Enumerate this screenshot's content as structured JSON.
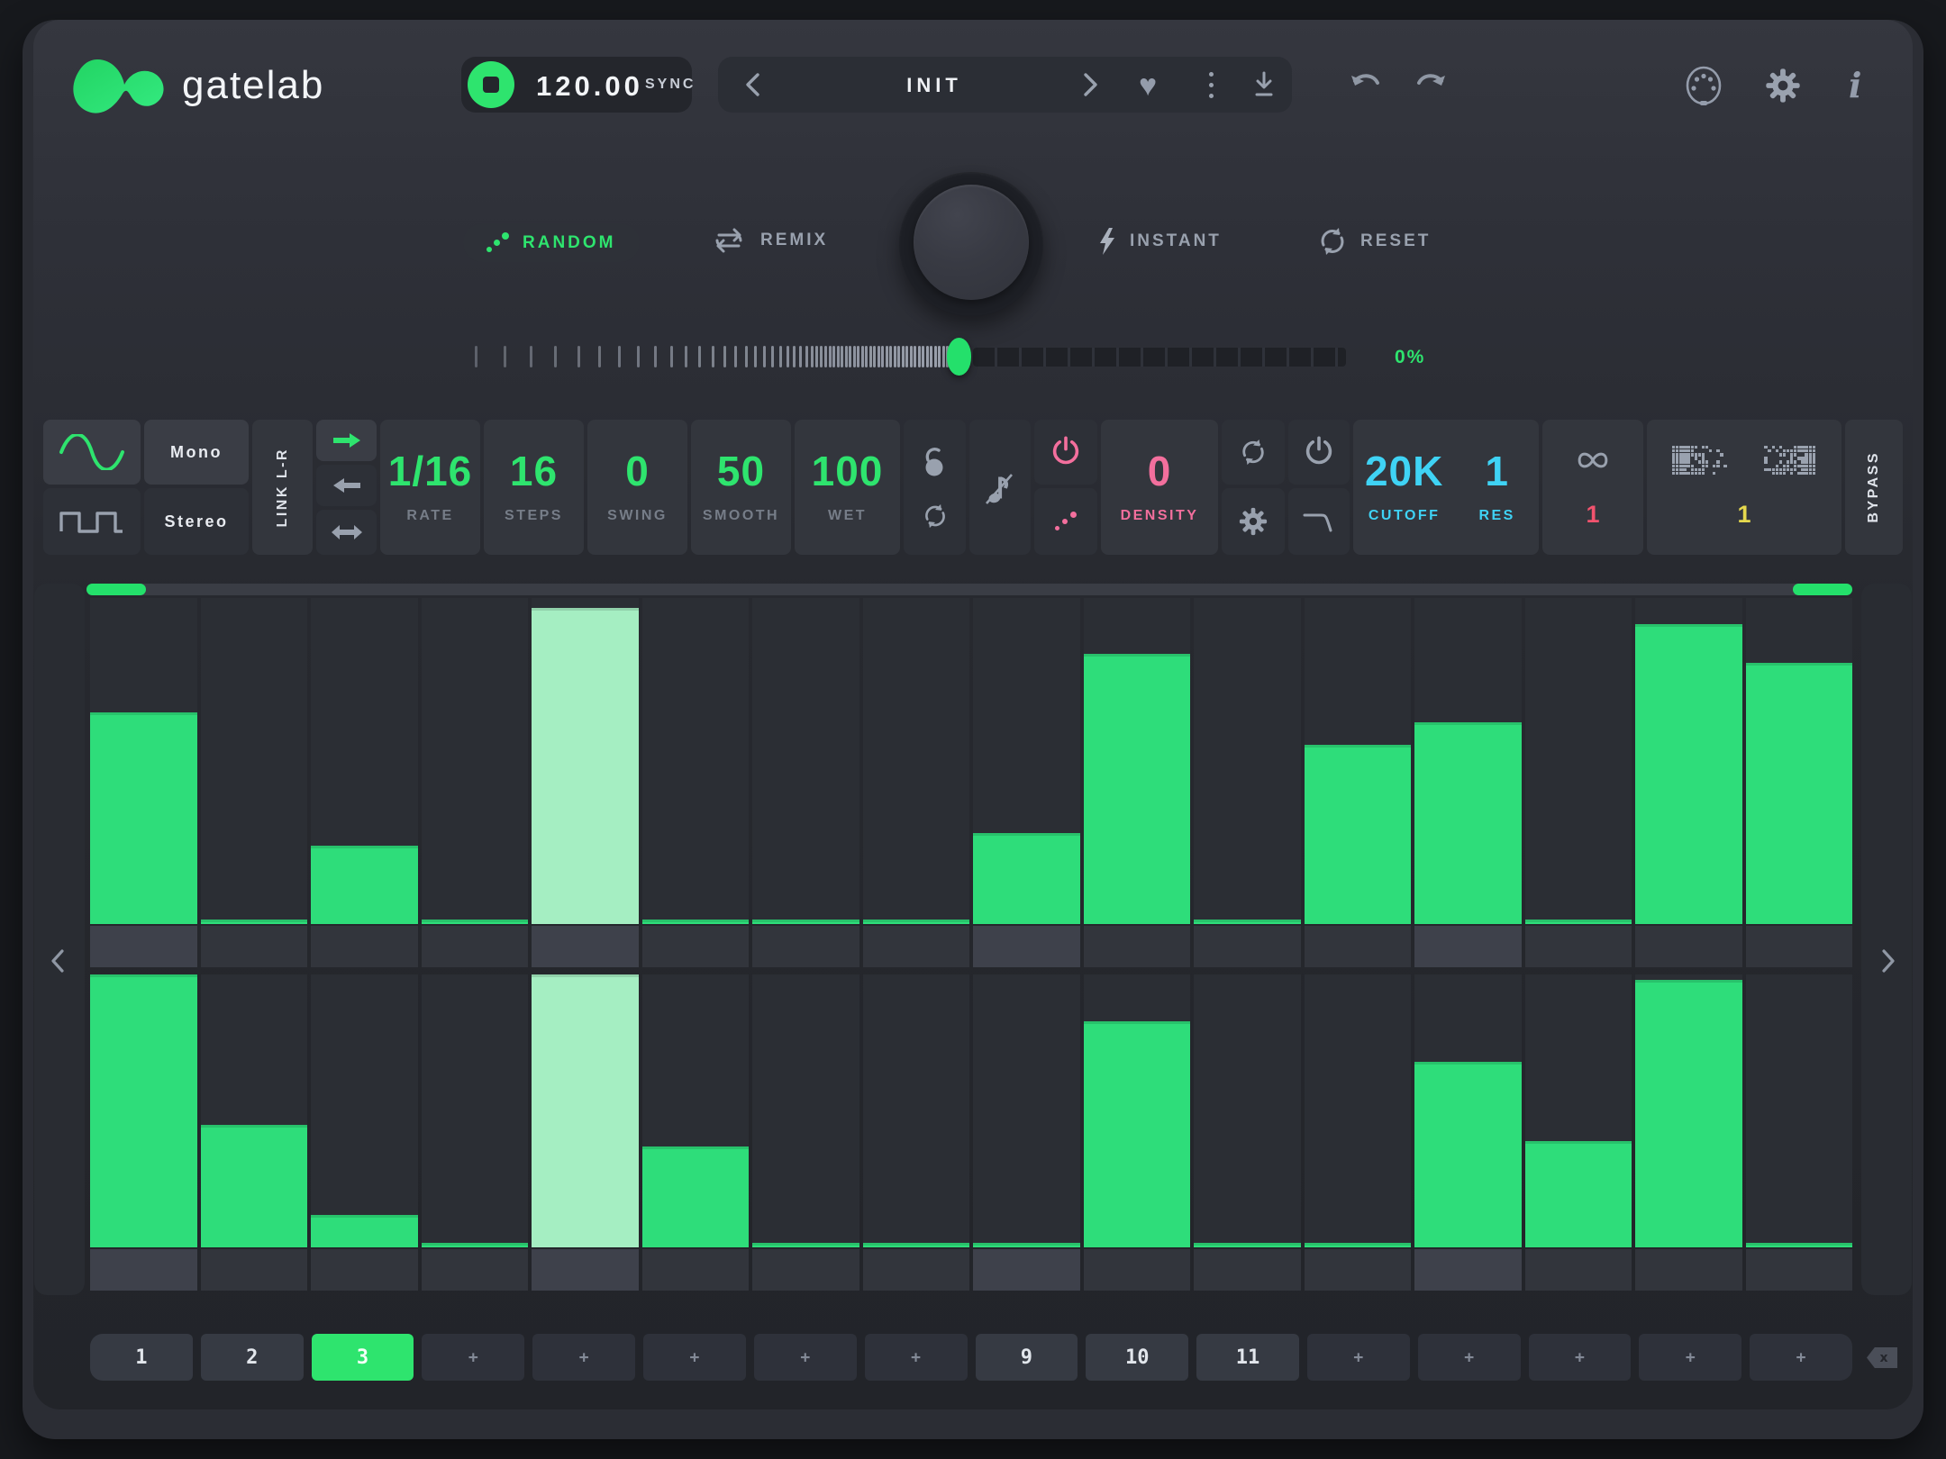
{
  "colors": {
    "accent_green": "#2ee46e",
    "bar_green": "#2edd7a",
    "bar_active_green": "#a5eec2",
    "pink": "#f36f9d",
    "red": "#f2536e",
    "cyan": "#3fd3f5",
    "yellow": "#e5d84e",
    "panel_dark": "#26282e"
  },
  "header": {
    "logo_text": "gatelab",
    "tempo_value": "120.00",
    "sync_label": "SYNC",
    "preset_name": "INIT",
    "heart_glyph": "♥",
    "info_glyph": "i"
  },
  "transport": {
    "random_label": "RANDOM",
    "remix_label": "REMIX",
    "instant_label": "INSTANT",
    "reset_label": "RESET",
    "variation_percent": "0%"
  },
  "controls": {
    "mono_label": "Mono",
    "stereo_label": "Stereo",
    "link_label": "LINK L-R",
    "rate": {
      "value": "1/16",
      "label": "RATE"
    },
    "steps": {
      "value": "16",
      "label": "STEPS"
    },
    "swing": {
      "value": "0",
      "label": "SWING"
    },
    "smooth": {
      "value": "50",
      "label": "SMOOTH"
    },
    "wet": {
      "value": "100",
      "label": "WET"
    },
    "density": {
      "value": "0",
      "label": "DENSITY"
    },
    "cutoff": {
      "value": "20K",
      "label": "CUTOFF"
    },
    "res": {
      "value": "1",
      "label": "RES"
    },
    "loop_count": "1",
    "randomizer_count": "1",
    "bypass_label": "BYPASS"
  },
  "chart_data": [
    {
      "type": "bar",
      "title": "Gate step sequencer - lane A (top)",
      "x": [
        1,
        2,
        3,
        4,
        5,
        6,
        7,
        8,
        9,
        10,
        11,
        12,
        13,
        14,
        15,
        16
      ],
      "values": [
        0.65,
        0.012,
        0.24,
        0.012,
        0.97,
        0.012,
        0.012,
        0.012,
        0.28,
        0.83,
        0.012,
        0.55,
        0.62,
        0.012,
        0.92,
        0.8
      ],
      "active_step": 5,
      "beat_steps": [
        1,
        5,
        9,
        13
      ],
      "ylim": [
        0,
        1
      ]
    },
    {
      "type": "bar",
      "title": "Gate step sequencer - lane B (bottom)",
      "x": [
        1,
        2,
        3,
        4,
        5,
        6,
        7,
        8,
        9,
        10,
        11,
        12,
        13,
        14,
        15,
        16
      ],
      "values": [
        1.0,
        0.45,
        0.12,
        0.012,
        1.0,
        0.37,
        0.012,
        0.012,
        0.012,
        0.83,
        0.012,
        0.012,
        0.68,
        0.39,
        0.98,
        0.012
      ],
      "active_step": 5,
      "beat_steps": [
        1,
        5,
        9,
        13
      ],
      "ylim": [
        0,
        1
      ]
    }
  ],
  "patterns": {
    "slots": [
      {
        "label": "1",
        "state": "saved"
      },
      {
        "label": "2",
        "state": "saved"
      },
      {
        "label": "3",
        "state": "selected"
      },
      {
        "label": "+",
        "state": "empty"
      },
      {
        "label": "+",
        "state": "empty"
      },
      {
        "label": "+",
        "state": "empty"
      },
      {
        "label": "+",
        "state": "empty"
      },
      {
        "label": "+",
        "state": "empty"
      },
      {
        "label": "9",
        "state": "saved"
      },
      {
        "label": "10",
        "state": "saved"
      },
      {
        "label": "11",
        "state": "saved"
      },
      {
        "label": "+",
        "state": "empty"
      },
      {
        "label": "+",
        "state": "empty"
      },
      {
        "label": "+",
        "state": "empty"
      },
      {
        "label": "+",
        "state": "empty"
      },
      {
        "label": "+",
        "state": "empty"
      }
    ],
    "delete_glyph": "x"
  }
}
